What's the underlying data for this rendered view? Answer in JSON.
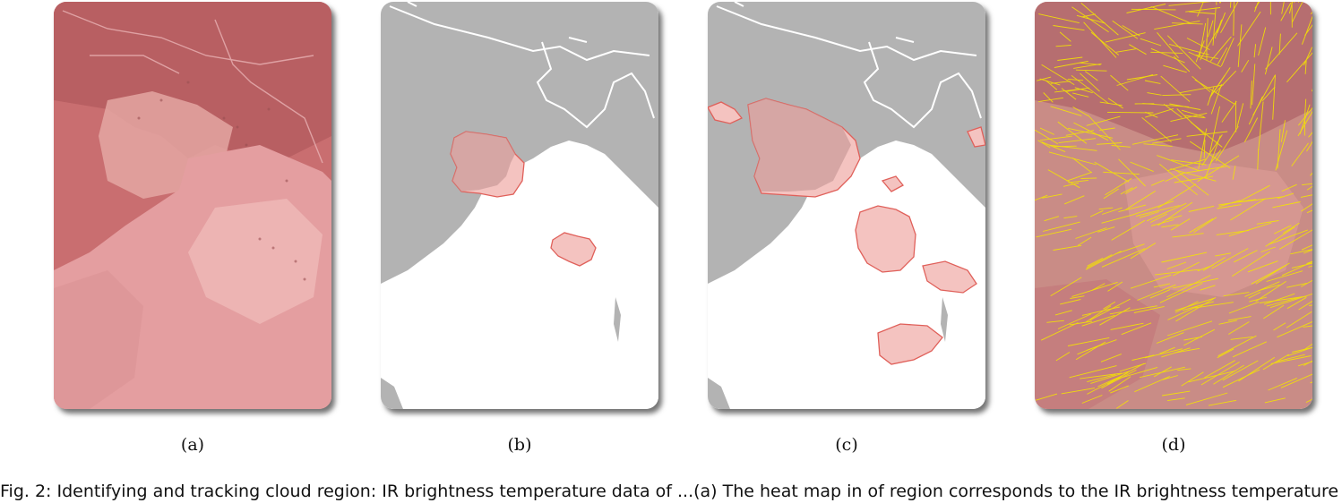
{
  "panels": [
    {
      "id": "a",
      "label": "(a)"
    },
    {
      "id": "b",
      "label": "(b)"
    },
    {
      "id": "c",
      "label": "(c)"
    },
    {
      "id": "d",
      "label": "(d)"
    }
  ],
  "figure_caption": "Fig. 2: Identifying and tracking cloud region: IR brightness temperature data of ...(a) The heat map in of region corresponds to the IR brightness temperature",
  "colors": {
    "cloud_fill": "#f4c3c0",
    "cloud_edge": "#e0605a",
    "land_gray": "#b3b3b3",
    "flow_lines": "#f5e400"
  }
}
